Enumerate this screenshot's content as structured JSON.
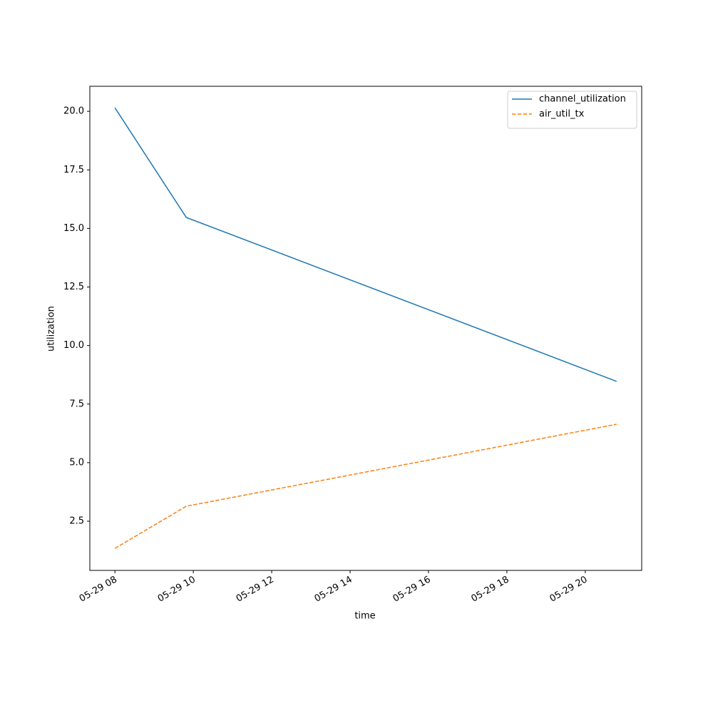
{
  "chart_data": {
    "type": "line",
    "x_label": "time",
    "y_label": "utilization",
    "x": [
      8,
      9.82,
      20.8
    ],
    "series": [
      {
        "name": "channel_utilization",
        "color": "#1f77b4",
        "linestyle": "solid",
        "values": [
          20.15,
          15.47,
          8.47
        ]
      },
      {
        "name": "air_util_tx",
        "color": "#ff7f0e",
        "linestyle": "dashed",
        "values": [
          1.34,
          3.14,
          6.64
        ]
      }
    ],
    "xlim": [
      7.36,
      21.44
    ],
    "xticks": [
      {
        "value": 8,
        "label": "05-29 08"
      },
      {
        "value": 10,
        "label": "05-29 10"
      },
      {
        "value": 12,
        "label": "05-29 12"
      },
      {
        "value": 14,
        "label": "05-29 14"
      },
      {
        "value": 16,
        "label": "05-29 16"
      },
      {
        "value": 18,
        "label": "05-29 18"
      },
      {
        "value": 20,
        "label": "05-29 20"
      }
    ],
    "ylim": [
      0.4,
      21.07
    ],
    "yticks": [
      2.5,
      {
        "value": 5,
        "label": "5.0"
      },
      7.5,
      {
        "value": 10,
        "label": "10.0"
      },
      12.5,
      {
        "value": 15,
        "label": "15.0"
      },
      17.5,
      {
        "value": 20,
        "label": "20.0"
      }
    ],
    "legend": "upper right",
    "grid": false
  }
}
